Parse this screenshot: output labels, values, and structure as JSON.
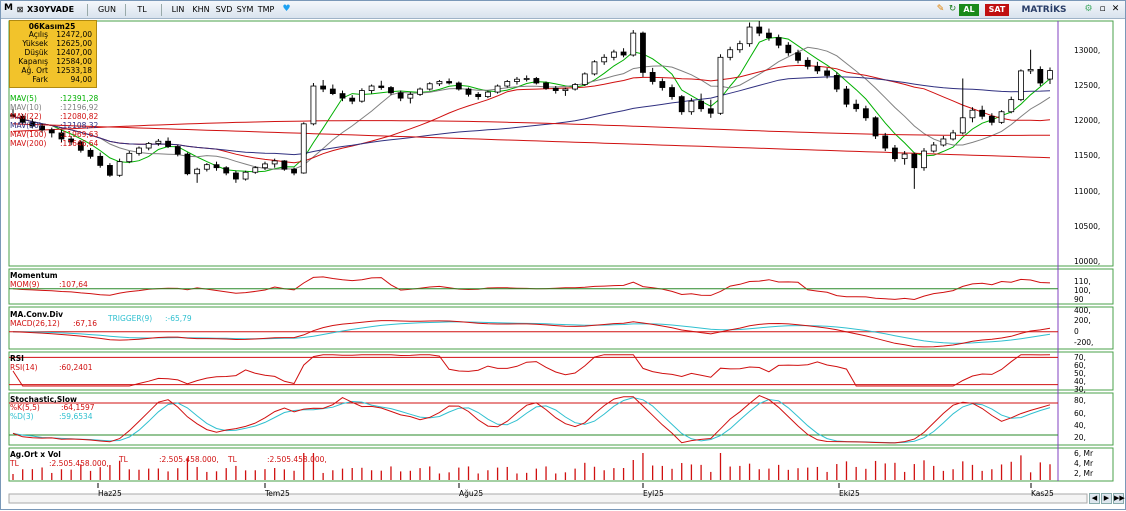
{
  "toolbar": {
    "logo": "M",
    "symbol": "X30YVADE",
    "buttons": [
      "GUN",
      "TL",
      "LIN",
      "KHN",
      "SVD",
      "SYM",
      "TMP"
    ],
    "al": "AL",
    "sat": "SAT",
    "brand": "MATRİKS"
  },
  "info": {
    "date": "06Kasım25",
    "rows": [
      {
        "label": "Açılış",
        "value": "12472,00"
      },
      {
        "label": "Yüksek",
        "value": "12625,00"
      },
      {
        "label": "Düşük",
        "value": "12407,00"
      },
      {
        "label": "Kapanış",
        "value": "12584,00"
      },
      {
        "label": "Ağ. Ort",
        "value": "12533,18"
      },
      {
        "label": "Fark",
        "value": "94,00"
      }
    ]
  },
  "mav": [
    {
      "label": "MAV(5)",
      "value": ":12391,28",
      "color": "#00b000"
    },
    {
      "label": "MAV(10)",
      "value": ":12196,92",
      "color": "#808080"
    },
    {
      "label": "MAV(22)",
      "value": ":12080,82",
      "color": "#d01010"
    },
    {
      "label": "MAV(50)",
      "value": ":12108,32",
      "color": "#303080"
    },
    {
      "label": "MAV(100)",
      "value": ":11969,63",
      "color": "#d01010"
    },
    {
      "label": "MAV(200)",
      "value": ":11646,64",
      "color": "#d01010"
    }
  ],
  "price_axis": [
    "13000,",
    "12500,",
    "12000,",
    "11500,",
    "11000,",
    "10500,",
    "10000,"
  ],
  "momentum": {
    "title": "Momentum",
    "label": "MOM(9)",
    "value": ":107,64",
    "axis": [
      "110,",
      "100,",
      "90"
    ]
  },
  "macd": {
    "title": "MA.Conv.Div",
    "label": "MACD(26,12)",
    "value": ":67,16",
    "trigger_label": "TRIGGER(9)",
    "trigger_value": ":-65,79",
    "axis": [
      "400,",
      "200,",
      "0",
      "-200,"
    ]
  },
  "rsi": {
    "title": "RSI",
    "label": "RSI(14)",
    "value": ":60,2401",
    "axis": [
      "70,",
      "60,",
      "50,",
      "40,",
      "30,"
    ]
  },
  "stoch": {
    "title": "Stochastic,Slow",
    "k_label": "%K(5,5)",
    "k_value": ":64,1597",
    "d_label": "%D(3)",
    "d_value": ":59,6534",
    "axis": [
      "80,",
      "60,",
      "40,",
      "20,"
    ]
  },
  "volume": {
    "title": "Ag.Ort x Vol",
    "row": [
      "TL",
      ":2.505.458.000,",
      "TL",
      ":2.505.458.000,",
      "TL",
      ":2.505.458.000,"
    ],
    "axis": [
      "6, Mr",
      "4, Mr",
      "2, Mr"
    ]
  },
  "x_axis": [
    "Haz25",
    "Tem25",
    "Ağu25",
    "Eyl25",
    "Eki25",
    "Kas25"
  ],
  "candles": [
    [
      12000,
      12080,
      11950,
      11980
    ],
    [
      11980,
      12010,
      11880,
      11900
    ],
    [
      11900,
      11950,
      11820,
      11850
    ],
    [
      11850,
      11880,
      11760,
      11800
    ],
    [
      11800,
      11830,
      11700,
      11760
    ],
    [
      11760,
      11800,
      11640,
      11680
    ],
    [
      11680,
      11720,
      11600,
      11640
    ],
    [
      11640,
      11660,
      11500,
      11530
    ],
    [
      11530,
      11560,
      11420,
      11450
    ],
    [
      11450,
      11500,
      11300,
      11330
    ],
    [
      11330,
      11360,
      11180,
      11200
    ],
    [
      11200,
      11420,
      11180,
      11380
    ],
    [
      11380,
      11520,
      11360,
      11490
    ],
    [
      11490,
      11580,
      11460,
      11560
    ],
    [
      11560,
      11640,
      11530,
      11620
    ],
    [
      11620,
      11680,
      11590,
      11650
    ],
    [
      11650,
      11700,
      11560,
      11580
    ],
    [
      11580,
      11600,
      11450,
      11480
    ],
    [
      11480,
      11500,
      11200,
      11220
    ],
    [
      11220,
      11300,
      11100,
      11280
    ],
    [
      11280,
      11360,
      11250,
      11340
    ],
    [
      11340,
      11380,
      11260,
      11300
    ],
    [
      11300,
      11320,
      11200,
      11230
    ],
    [
      11230,
      11260,
      11100,
      11150
    ],
    [
      11150,
      11260,
      11130,
      11240
    ],
    [
      11240,
      11320,
      11220,
      11300
    ],
    [
      11300,
      11380,
      11270,
      11350
    ],
    [
      11350,
      11420,
      11300,
      11390
    ],
    [
      11390,
      11400,
      11260,
      11280
    ],
    [
      11280,
      11300,
      11200,
      11230
    ],
    [
      11230,
      11900,
      11220,
      11880
    ],
    [
      11880,
      12420,
      11860,
      12380
    ],
    [
      12380,
      12460,
      12300,
      12340
    ],
    [
      12340,
      12400,
      12260,
      12280
    ],
    [
      12280,
      12320,
      12180,
      12220
    ],
    [
      12220,
      12260,
      12140,
      12180
    ],
    [
      12180,
      12350,
      12160,
      12320
    ],
    [
      12320,
      12400,
      12280,
      12380
    ],
    [
      12380,
      12450,
      12330,
      12360
    ],
    [
      12360,
      12380,
      12260,
      12290
    ],
    [
      12290,
      12320,
      12180,
      12220
    ],
    [
      12220,
      12300,
      12150,
      12270
    ],
    [
      12270,
      12360,
      12250,
      12340
    ],
    [
      12340,
      12430,
      12320,
      12410
    ],
    [
      12410,
      12460,
      12380,
      12440
    ],
    [
      12440,
      12480,
      12400,
      12420
    ],
    [
      12420,
      12440,
      12320,
      12340
    ],
    [
      12340,
      12360,
      12240,
      12270
    ],
    [
      12270,
      12300,
      12200,
      12240
    ],
    [
      12240,
      12320,
      12220,
      12300
    ],
    [
      12300,
      12400,
      12280,
      12380
    ],
    [
      12380,
      12460,
      12360,
      12440
    ],
    [
      12440,
      12500,
      12400,
      12470
    ],
    [
      12470,
      12520,
      12440,
      12480
    ],
    [
      12480,
      12500,
      12400,
      12420
    ],
    [
      12420,
      12440,
      12330,
      12350
    ],
    [
      12350,
      12380,
      12280,
      12320
    ],
    [
      12320,
      12360,
      12250,
      12340
    ],
    [
      12340,
      12420,
      12320,
      12400
    ],
    [
      12400,
      12560,
      12380,
      12540
    ],
    [
      12540,
      12720,
      12520,
      12700
    ],
    [
      12700,
      12800,
      12660,
      12760
    ],
    [
      12760,
      12860,
      12720,
      12830
    ],
    [
      12830,
      12880,
      12760,
      12790
    ],
    [
      12790,
      13120,
      12770,
      13080
    ],
    [
      13080,
      13100,
      12500,
      12560
    ],
    [
      12560,
      12620,
      12400,
      12440
    ],
    [
      12440,
      12480,
      12320,
      12360
    ],
    [
      12360,
      12400,
      12200,
      12240
    ],
    [
      12240,
      12260,
      12000,
      12040
    ],
    [
      12040,
      12220,
      12000,
      12180
    ],
    [
      12180,
      12280,
      12040,
      12080
    ],
    [
      12080,
      12200,
      11960,
      12020
    ],
    [
      12020,
      12800,
      12000,
      12760
    ],
    [
      12760,
      12900,
      12720,
      12860
    ],
    [
      12860,
      12980,
      12820,
      12940
    ],
    [
      12940,
      13220,
      12900,
      13160
    ],
    [
      13160,
      13240,
      13040,
      13080
    ],
    [
      13080,
      13140,
      12980,
      13020
    ],
    [
      13020,
      13060,
      12880,
      12920
    ],
    [
      12920,
      12960,
      12780,
      12820
    ],
    [
      12820,
      12860,
      12680,
      12720
    ],
    [
      12720,
      12760,
      12600,
      12640
    ],
    [
      12640,
      12700,
      12540,
      12580
    ],
    [
      12580,
      12620,
      12480,
      12520
    ],
    [
      12520,
      12560,
      12300,
      12340
    ],
    [
      12340,
      12380,
      12100,
      12140
    ],
    [
      12140,
      12200,
      12040,
      12080
    ],
    [
      12080,
      12120,
      11920,
      11960
    ],
    [
      11960,
      11980,
      11680,
      11720
    ],
    [
      11720,
      11760,
      11520,
      11560
    ],
    [
      11560,
      11600,
      11380,
      11420
    ],
    [
      11420,
      11520,
      11340,
      11480
    ],
    [
      11480,
      11500,
      11020,
      11300
    ],
    [
      11300,
      11560,
      11260,
      11520
    ],
    [
      11520,
      11640,
      11500,
      11600
    ],
    [
      11600,
      11720,
      11580,
      11680
    ],
    [
      11680,
      11800,
      11660,
      11760
    ],
    [
      11760,
      12480,
      11740,
      11960
    ],
    [
      11960,
      12100,
      11900,
      12060
    ],
    [
      12060,
      12120,
      11940,
      11980
    ],
    [
      11980,
      12020,
      11860,
      11900
    ],
    [
      11900,
      12060,
      11880,
      12040
    ],
    [
      12040,
      12240,
      12020,
      12200
    ],
    [
      12200,
      12600,
      12180,
      12580
    ],
    [
      12580,
      12860,
      12540,
      12600
    ],
    [
      12600,
      12640,
      12380,
      12420
    ],
    [
      12472,
      12625,
      12407,
      12584
    ]
  ]
}
